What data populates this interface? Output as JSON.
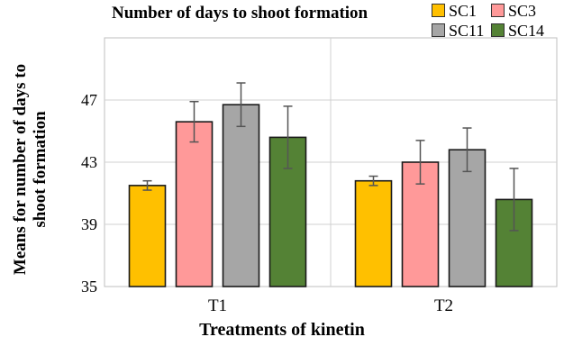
{
  "chart_data": {
    "type": "bar",
    "title": "Number of days to shoot formation",
    "xlabel": "Treatments of kinetin",
    "ylabel": "Means for number of days to shoot formation",
    "categories": [
      "T1",
      "T2"
    ],
    "ylim": [
      35,
      51
    ],
    "yticks": [
      35,
      39,
      43,
      47
    ],
    "grid": true,
    "legend_position": "top-right",
    "series": [
      {
        "name": "SC1",
        "color": "#ffc000",
        "values": [
          41.5,
          41.8
        ],
        "errors": [
          0.3,
          0.3
        ]
      },
      {
        "name": "SC3",
        "color": "#ff9999",
        "values": [
          45.6,
          43.0
        ],
        "errors": [
          1.3,
          1.4
        ]
      },
      {
        "name": "SC11",
        "color": "#a6a6a6",
        "values": [
          46.7,
          43.8
        ],
        "errors": [
          1.4,
          1.4
        ]
      },
      {
        "name": "SC14",
        "color": "#548235",
        "values": [
          44.6,
          40.6
        ],
        "errors": [
          2.0,
          2.0
        ]
      }
    ]
  }
}
